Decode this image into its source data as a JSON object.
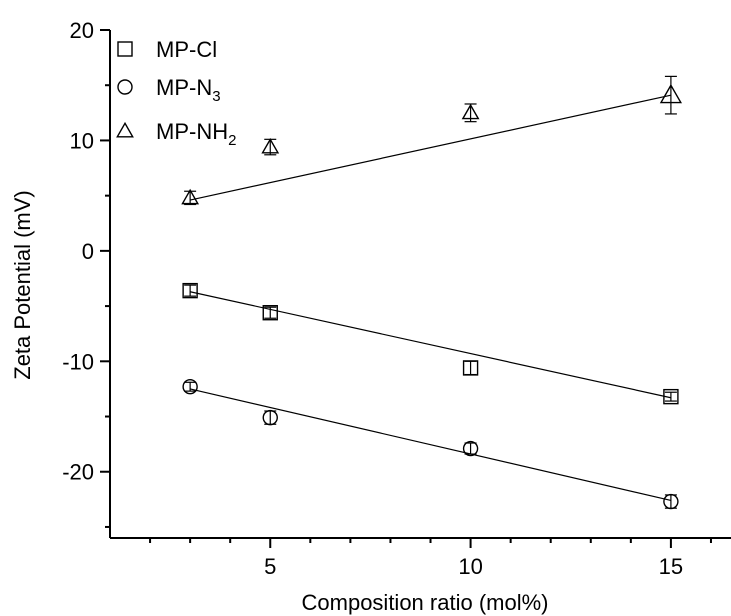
{
  "chart_data": {
    "type": "scatter",
    "title": "",
    "xlabel": "Composition ratio (mol%)",
    "ylabel": "Zeta Potential (mV)",
    "xlim": [
      1,
      16.5
    ],
    "ylim": [
      -26,
      20
    ],
    "x_ticks": [
      5,
      10,
      15
    ],
    "y_ticks": [
      -20,
      -10,
      0,
      10,
      20
    ],
    "grid": false,
    "legend": "top-left",
    "series": [
      {
        "name_base": "MP-Cl",
        "name_sub": "",
        "marker": "square",
        "x": [
          3,
          5,
          10,
          15
        ],
        "y": [
          -3.6,
          -5.6,
          -10.6,
          -13.2
        ],
        "err": [
          0.5,
          0.5,
          0.6,
          0.4
        ],
        "fit": [
          [
            3,
            -3.7
          ],
          [
            15,
            -13.3
          ]
        ]
      },
      {
        "name_base": "MP-N",
        "name_sub": "3",
        "marker": "circle",
        "x": [
          3,
          5,
          10,
          15
        ],
        "y": [
          -12.3,
          -15.1,
          -17.9,
          -22.7
        ],
        "err": [
          0.4,
          0.6,
          0.5,
          0.6
        ],
        "fit": [
          [
            3,
            -12.5
          ],
          [
            15,
            -22.6
          ]
        ]
      },
      {
        "name_base": "MP-NH",
        "name_sub": "2",
        "marker": "triangle",
        "x": [
          3,
          5,
          10,
          15
        ],
        "y": [
          4.8,
          9.4,
          12.5,
          14.1
        ],
        "err": [
          0.6,
          0.7,
          0.8,
          1.7
        ],
        "fit": [
          [
            3,
            4.6
          ],
          [
            15,
            14.1
          ]
        ]
      }
    ]
  }
}
